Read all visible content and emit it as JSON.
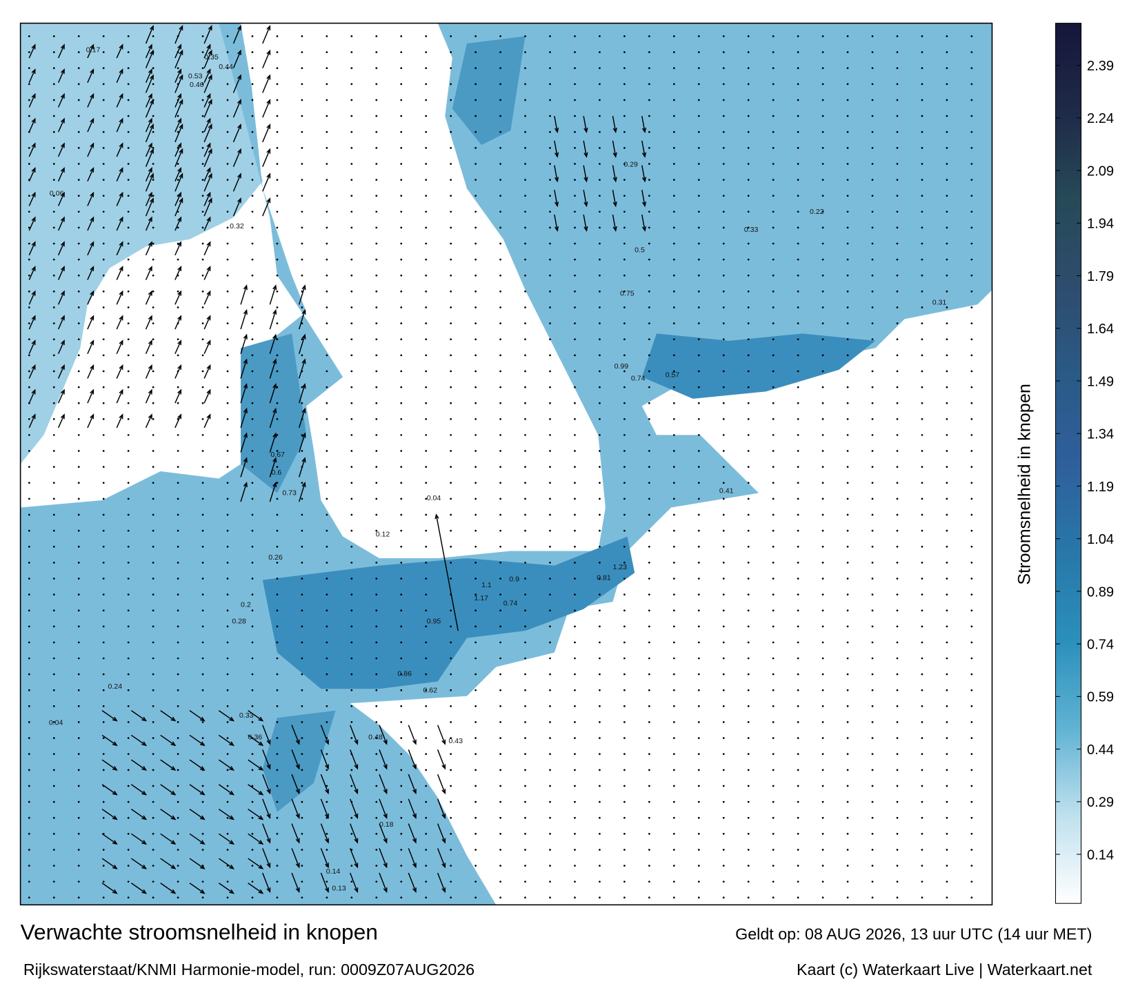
{
  "title": "Verwachte stroomsnelheid in knopen",
  "source": "Rijkswaterstaat/KNMI Harmonie-model, run: 0009Z07AUG2026",
  "valid": "Geldt op: 08 AUG 2026, 13 uur UTC (14 uur MET)",
  "credit": "Kaart (c) Waterkaart Live | Waterkaart.net",
  "colorbar": {
    "label": "Stroomsnelheid in knopen",
    "lim": [
      0,
      2.51
    ],
    "ticks": [
      0.14,
      0.29,
      0.44,
      0.59,
      0.74,
      0.89,
      1.04,
      1.19,
      1.34,
      1.49,
      1.64,
      1.79,
      1.94,
      2.09,
      2.24,
      2.39
    ],
    "colors": [
      "#ffffff",
      "#bfe0ee",
      "#5fb2d3",
      "#2a8fbb",
      "#2877a8",
      "#2f5f9c",
      "#2a5a86",
      "#2e4c6e",
      "#264a58",
      "#1e2a48",
      "#16163a"
    ]
  },
  "currents": [
    {
      "value": 0.17
    },
    {
      "value": 0.35
    },
    {
      "value": 0.44
    },
    {
      "value": 0.53
    },
    {
      "value": 0.46
    },
    {
      "value": 0.32
    },
    {
      "value": 0.31
    },
    {
      "value": 0.06
    },
    {
      "value": 0.22
    },
    {
      "value": 0.48
    },
    {
      "value": 0.67
    },
    {
      "value": 0.73
    },
    {
      "value": 0.6
    },
    {
      "value": 0.04
    },
    {
      "value": 0.12
    },
    {
      "value": 0.95
    },
    {
      "value": 1.17
    },
    {
      "value": 1.1
    },
    {
      "value": 0.9
    },
    {
      "value": 0.86
    },
    {
      "value": 0.74
    },
    {
      "value": 0.62
    },
    {
      "value": 0.43
    },
    {
      "value": 1.23
    },
    {
      "value": 0.81
    },
    {
      "value": 0.99
    },
    {
      "value": 0.74
    },
    {
      "value": 0.57
    },
    {
      "value": 0.41
    },
    {
      "value": 0.33
    },
    {
      "value": 0.2
    },
    {
      "value": 0.24
    },
    {
      "value": 0.33
    },
    {
      "value": 0.36
    },
    {
      "value": 0.18
    },
    {
      "value": 0.14
    },
    {
      "value": 0.19
    },
    {
      "value": 0.29
    },
    {
      "value": 0.5
    },
    {
      "value": 0.75
    },
    {
      "value": 0.31
    },
    {
      "value": 0.28
    },
    {
      "value": 0.26
    },
    {
      "value": 0.04
    },
    {
      "value": 0.13
    }
  ]
}
